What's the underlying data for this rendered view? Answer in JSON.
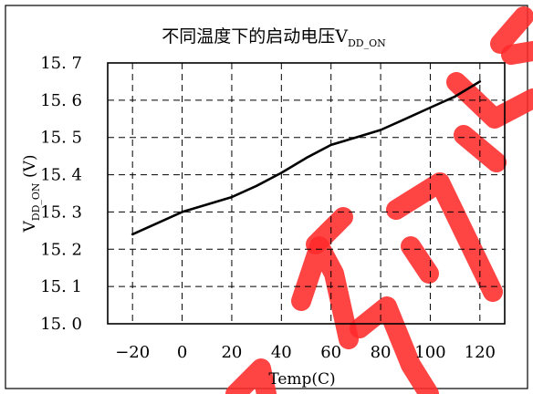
{
  "chart_data": {
    "type": "line",
    "title": "不同温度下的启动电压V",
    "title_subscript": "DD_ON",
    "xlabel": "Temp(C)",
    "ylabel": "V",
    "ylabel_subscript": "DD_ON",
    "ylabel_unit": " (V)",
    "xlim": [
      -30,
      130
    ],
    "ylim": [
      15.0,
      15.7
    ],
    "grid": true,
    "x_ticks": [
      -20,
      0,
      20,
      40,
      60,
      80,
      100,
      120
    ],
    "x_tick_labels": [
      "−20",
      "0",
      "20",
      "40",
      "60",
      "80",
      "100",
      "120"
    ],
    "y_ticks": [
      15.0,
      15.1,
      15.2,
      15.3,
      15.4,
      15.5,
      15.6,
      15.7
    ],
    "y_tick_labels": [
      "15. 0",
      "15. 1",
      "15. 2",
      "15. 3",
      "15. 4",
      "15. 5",
      "15. 6",
      "15. 7"
    ],
    "series": [
      {
        "x": [
          -20,
          -10,
          0,
          10,
          20,
          30,
          40,
          50,
          60,
          70,
          80,
          90,
          100,
          110,
          120
        ],
        "y": [
          15.24,
          15.27,
          15.3,
          15.32,
          15.34,
          15.37,
          15.405,
          15.445,
          15.48,
          15.5,
          15.52,
          15.55,
          15.58,
          15.61,
          15.65
        ],
        "color": "#000000"
      }
    ]
  },
  "watermark": {
    "color": "#ff2a2a"
  }
}
